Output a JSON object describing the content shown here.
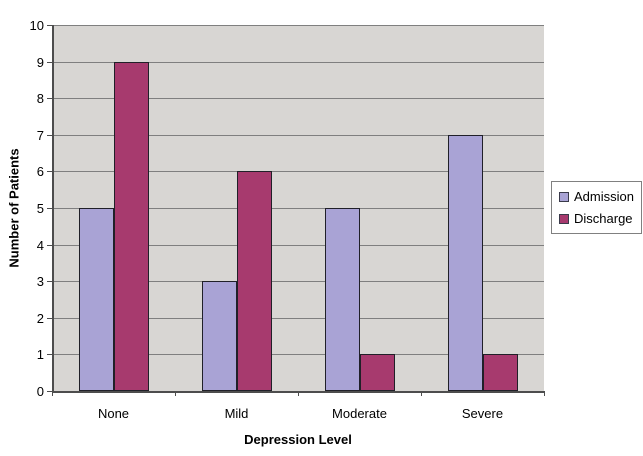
{
  "chart_data": {
    "type": "bar",
    "categories": [
      "None",
      "Mild",
      "Moderate",
      "Severe"
    ],
    "series": [
      {
        "name": "Admission",
        "color": "#a9a3d5",
        "values": [
          5,
          3,
          5,
          7
        ]
      },
      {
        "name": "Discharge",
        "color": "#a73a6e",
        "values": [
          9,
          6,
          1,
          1
        ]
      }
    ],
    "xlabel": "Depression Level",
    "ylabel": "Number of Patients",
    "ylim": [
      0,
      10
    ],
    "ytick_step": 1,
    "grid": true,
    "legend_position": "right",
    "colors": {
      "plot_bg": "#d8d6d3",
      "gridline": "#7f7f7f",
      "axis": "#4d4d4d",
      "bar_border": "#202028",
      "legend_border": "#808080",
      "text": "#000000",
      "background": "#ffffff"
    }
  }
}
